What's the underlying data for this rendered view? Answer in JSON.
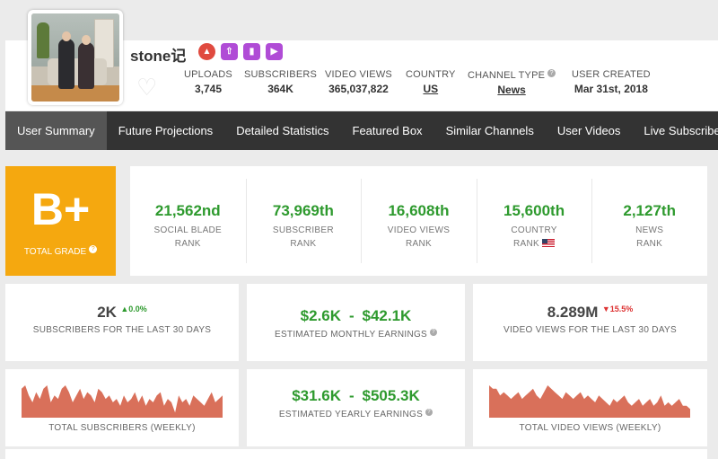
{
  "channel": {
    "name": "stone记",
    "stats": [
      {
        "label": "UPLOADS",
        "value": "3,745"
      },
      {
        "label": "SUBSCRIBERS",
        "value": "364K"
      },
      {
        "label": "VIDEO VIEWS",
        "value": "365,037,822"
      },
      {
        "label": "COUNTRY",
        "value": "US"
      },
      {
        "label": "CHANNEL TYPE",
        "value": "News"
      },
      {
        "label": "USER CREATED",
        "value": "Mar 31st, 2018"
      }
    ]
  },
  "nav": [
    "User Summary",
    "Future Projections",
    "Detailed Statistics",
    "Featured Box",
    "Similar Channels",
    "User Videos",
    "Live Subscriber C"
  ],
  "grade": {
    "value": "B+",
    "label": "TOTAL GRADE"
  },
  "ranks": [
    {
      "value": "21,562nd",
      "line1": "SOCIAL BLADE",
      "line2": "RANK"
    },
    {
      "value": "73,969th",
      "line1": "SUBSCRIBER",
      "line2": "RANK"
    },
    {
      "value": "16,608th",
      "line1": "VIDEO VIEWS",
      "line2": "RANK"
    },
    {
      "value": "15,600th",
      "line1": "COUNTRY",
      "line2": "RANK"
    },
    {
      "value": "2,127th",
      "line1": "NEWS",
      "line2": "RANK"
    }
  ],
  "subs30": {
    "value": "2K",
    "change": "0.0%",
    "label": "SUBSCRIBERS FOR THE LAST 30 DAYS"
  },
  "monthly": {
    "low": "$2.6K",
    "sep": "-",
    "high": "$42.1K",
    "label": "ESTIMATED MONTHLY EARNINGS"
  },
  "views30": {
    "value": "8.289M",
    "change": "15.5%",
    "label": "VIDEO VIEWS FOR THE LAST 30 DAYS"
  },
  "yearly": {
    "low": "$31.6K",
    "sep": "-",
    "high": "$505.3K",
    "label": "ESTIMATED YEARLY EARNINGS"
  },
  "spark_subs": {
    "label": "TOTAL SUBSCRIBERS (WEEKLY)",
    "color": "#d9705a",
    "values": [
      8,
      9,
      6,
      4,
      7,
      5,
      8,
      9,
      4,
      6,
      5,
      8,
      9,
      7,
      4,
      6,
      8,
      5,
      7,
      6,
      4,
      8,
      7,
      5,
      6,
      4,
      5,
      3,
      6,
      4,
      5,
      7,
      4,
      6,
      3,
      5,
      4,
      6,
      7,
      3,
      5,
      4,
      1,
      6,
      4,
      5,
      3,
      6,
      5,
      4,
      3,
      5,
      7,
      4,
      5,
      6
    ]
  },
  "spark_views": {
    "label": "TOTAL VIDEO VIEWS (WEEKLY)",
    "color": "#d9705a",
    "values": [
      9,
      8,
      8,
      6,
      7,
      6,
      5,
      6,
      7,
      5,
      6,
      7,
      8,
      6,
      5,
      7,
      9,
      8,
      7,
      6,
      5,
      7,
      6,
      5,
      6,
      7,
      5,
      6,
      5,
      4,
      6,
      5,
      4,
      3,
      5,
      4,
      5,
      6,
      4,
      3,
      4,
      5,
      3,
      4,
      5,
      3,
      4,
      6,
      3,
      4,
      3,
      4,
      5,
      3,
      3,
      2
    ]
  }
}
